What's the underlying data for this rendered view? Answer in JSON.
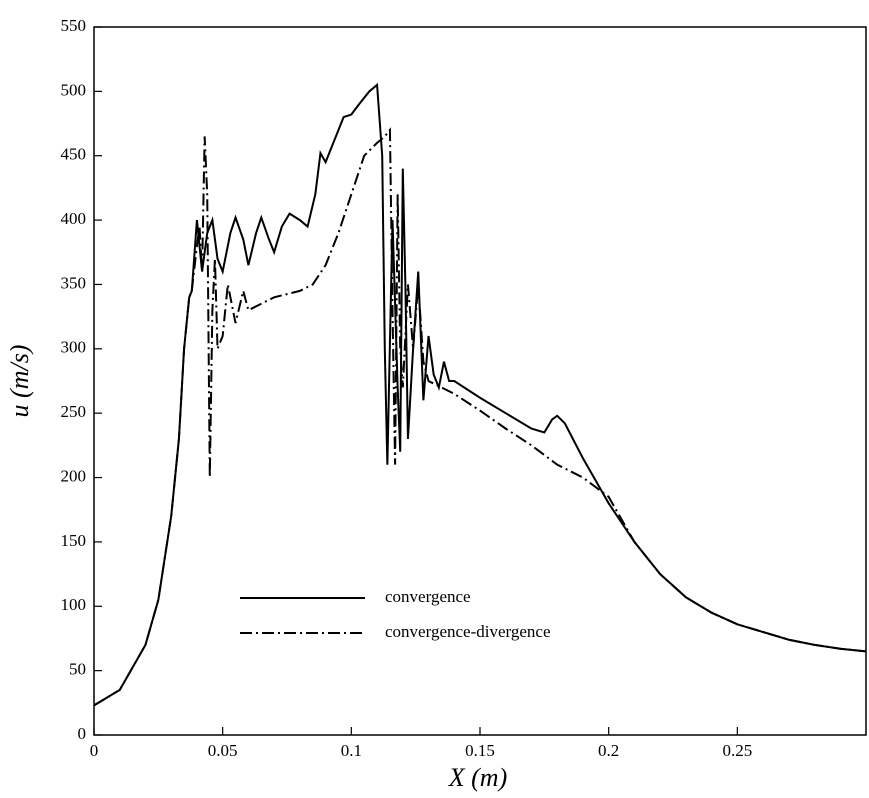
{
  "chart_data": {
    "type": "line",
    "x_label": "X (m)",
    "y_label": "u (m/s)",
    "xlim": [
      0,
      0.3
    ],
    "ylim": [
      0,
      550
    ],
    "xticks": [
      0,
      0.05,
      0.1,
      0.15,
      0.2,
      0.25
    ],
    "yticks": [
      0,
      50,
      100,
      150,
      200,
      250,
      300,
      350,
      400,
      450,
      500,
      550
    ],
    "legend": "lower left",
    "series": [
      {
        "name": "convergence",
        "color": "#000000",
        "dash": "solid",
        "x": [
          0,
          0.01,
          0.02,
          0.025,
          0.03,
          0.033,
          0.035,
          0.037,
          0.038,
          0.04,
          0.042,
          0.044,
          0.046,
          0.048,
          0.05,
          0.053,
          0.055,
          0.058,
          0.06,
          0.063,
          0.065,
          0.068,
          0.07,
          0.073,
          0.076,
          0.08,
          0.083,
          0.086,
          0.088,
          0.09,
          0.093,
          0.097,
          0.1,
          0.103,
          0.107,
          0.11,
          0.112,
          0.113,
          0.114,
          0.116,
          0.118,
          0.119,
          0.12,
          0.121,
          0.122,
          0.124,
          0.126,
          0.128,
          0.13,
          0.132,
          0.134,
          0.136,
          0.138,
          0.14,
          0.15,
          0.16,
          0.17,
          0.175,
          0.178,
          0.18,
          0.183,
          0.19,
          0.2,
          0.21,
          0.22,
          0.23,
          0.24,
          0.25,
          0.26,
          0.27,
          0.28,
          0.29,
          0.3
        ],
        "values": [
          23,
          35,
          70,
          105,
          170,
          230,
          300,
          340,
          345,
          400,
          360,
          390,
          400,
          370,
          360,
          390,
          402,
          385,
          365,
          390,
          402,
          385,
          375,
          395,
          405,
          400,
          395,
          420,
          452,
          445,
          460,
          480,
          482,
          490,
          500,
          505,
          450,
          300,
          210,
          400,
          270,
          220,
          440,
          350,
          230,
          300,
          360,
          260,
          310,
          280,
          270,
          290,
          275,
          275,
          262,
          250,
          238,
          235,
          245,
          248,
          242,
          215,
          180,
          150,
          125,
          107,
          95,
          86,
          80,
          74,
          70,
          67,
          65
        ]
      },
      {
        "name": "convergence-divergence",
        "color": "#000000",
        "dash": "dashdot",
        "x": [
          0,
          0.01,
          0.02,
          0.025,
          0.03,
          0.033,
          0.035,
          0.037,
          0.038,
          0.04,
          0.041,
          0.042,
          0.043,
          0.044,
          0.045,
          0.046,
          0.047,
          0.048,
          0.05,
          0.052,
          0.055,
          0.058,
          0.06,
          0.065,
          0.07,
          0.08,
          0.085,
          0.09,
          0.095,
          0.1,
          0.105,
          0.11,
          0.113,
          0.115,
          0.116,
          0.117,
          0.118,
          0.119,
          0.12,
          0.122,
          0.124,
          0.126,
          0.128,
          0.13,
          0.14,
          0.15,
          0.16,
          0.17,
          0.18,
          0.19,
          0.2,
          0.21,
          0.22,
          0.23,
          0.24,
          0.25,
          0.26,
          0.27,
          0.28,
          0.29,
          0.3
        ],
        "values": [
          23,
          35,
          70,
          105,
          170,
          230,
          300,
          340,
          345,
          380,
          395,
          360,
          465,
          420,
          200,
          330,
          370,
          300,
          310,
          350,
          320,
          345,
          330,
          335,
          340,
          345,
          350,
          365,
          390,
          420,
          450,
          460,
          465,
          470,
          330,
          210,
          420,
          300,
          270,
          350,
          300,
          350,
          290,
          275,
          265,
          252,
          238,
          225,
          210,
          200,
          185,
          150,
          125,
          107,
          95,
          86,
          80,
          74,
          70,
          67,
          65
        ]
      }
    ]
  }
}
